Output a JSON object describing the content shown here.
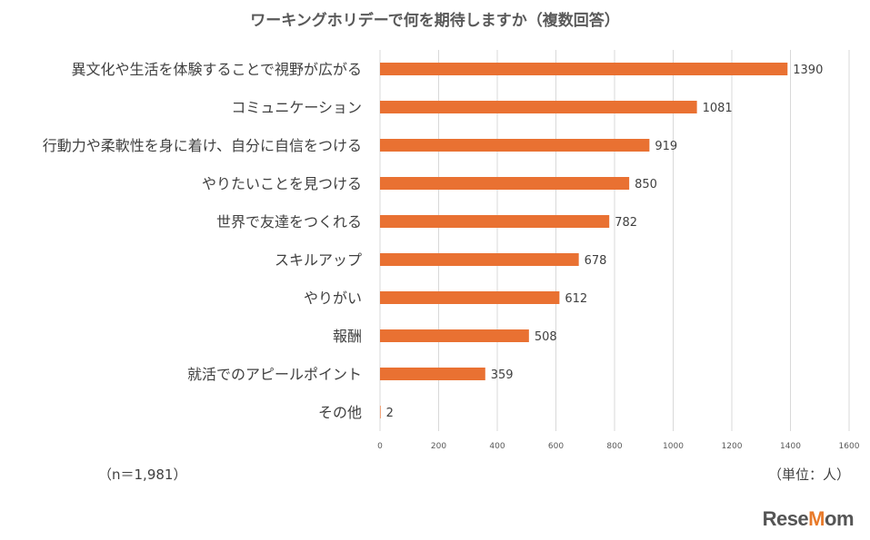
{
  "chart_data": {
    "type": "bar",
    "orientation": "horizontal",
    "title": "ワーキングホリデーで何を期待しますか（複数回答）",
    "categories": [
      "異文化や生活を体験することで視野が広がる",
      "コミュニケーション",
      "行動力や柔軟性を身に着け、自分に自信をつける",
      "やりたいことを見つける",
      "世界で友達をつくれる",
      "スキルアップ",
      "やりがい",
      "報酬",
      "就活でのアピールポイント",
      "その他"
    ],
    "values": [
      1390,
      1081,
      919,
      850,
      782,
      678,
      612,
      508,
      359,
      2
    ],
    "xlim": [
      0,
      1600
    ],
    "xticks": [
      "0",
      "200",
      "400",
      "600",
      "800",
      "1000",
      "1200",
      "1400",
      "1600"
    ],
    "grid": true,
    "bar_color": "#E97132"
  },
  "notes": {
    "sample": "（n＝1,981）",
    "unit": "（単位：人）"
  },
  "logo": {
    "prefix": "Rese",
    "highlight": "M",
    "suffix": "om"
  }
}
